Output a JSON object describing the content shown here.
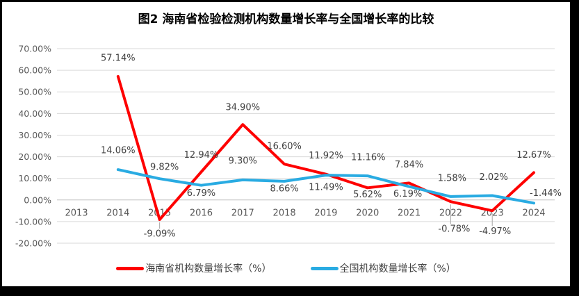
{
  "page": {
    "border_color": "#000000",
    "background": "#ffffff"
  },
  "chart_data": {
    "type": "line",
    "title": "图2 海南省检验检测机构数量增长率与全国增长率的比较",
    "categories": [
      "2013",
      "2014",
      "2015",
      "2016",
      "2017",
      "2018",
      "2019",
      "2020",
      "2021",
      "2022",
      "2023",
      "2024"
    ],
    "ylim": [
      -20,
      70
    ],
    "ytick_step": 10,
    "ytick_labels": [
      "70.00%",
      "60.00%",
      "50.00%",
      "40.00%",
      "30.00%",
      "20.00%",
      "10.00%",
      "0.00%",
      "-10.00%",
      "-20.00%"
    ],
    "grid": true,
    "legend_position": "bottom",
    "series": [
      {
        "name": "海南省机构数量增长率（%）",
        "color": "#fe0000",
        "values": [
          null,
          57.14,
          -9.09,
          12.94,
          34.9,
          16.6,
          11.92,
          5.62,
          7.84,
          -0.78,
          -4.97,
          12.67
        ],
        "data_labels": [
          "",
          "57.14%",
          "-9.09%",
          "12.94%",
          "34.90%",
          "16.60%",
          "11.92%",
          "5.62%",
          "7.84%",
          "-0.78%",
          "-4.97%",
          "12.67%"
        ],
        "label_dx": [
          0,
          0,
          0,
          0,
          0,
          0,
          0,
          0,
          0,
          5,
          4,
          0
        ],
        "label_dy": [
          0,
          -26,
          21,
          -24,
          -24,
          -25,
          -26,
          10,
          -26,
          40,
          30,
          -25
        ],
        "leader_lines": [
          false,
          false,
          true,
          false,
          false,
          false,
          false,
          false,
          false,
          true,
          true,
          false
        ]
      },
      {
        "name": "全国机构数量增长率（%）",
        "color": "#29abe2",
        "values": [
          null,
          14.06,
          9.82,
          6.79,
          9.3,
          8.66,
          11.49,
          11.16,
          6.19,
          1.58,
          2.02,
          -1.44
        ],
        "data_labels": [
          "",
          "14.06%",
          "9.82%",
          "6.79%",
          "9.30%",
          "8.66%",
          "11.49%",
          "11.16%",
          "6.19%",
          "1.58%",
          "2.02%",
          "-1.44%"
        ],
        "label_dx": [
          0,
          0,
          7,
          0,
          0,
          0,
          0,
          1,
          -2,
          2,
          2,
          17
        ],
        "label_dy": [
          0,
          -27,
          -16,
          12,
          -27,
          11,
          18,
          -26,
          11,
          -26,
          -26,
          -14
        ],
        "leader_lines": [
          false,
          false,
          false,
          false,
          false,
          false,
          false,
          false,
          false,
          false,
          false,
          false
        ]
      }
    ],
    "colors": {
      "gridline": "#d9d9d9",
      "axis_line": "#bfbfbf",
      "tick_label": "#595959",
      "data_label": "#404040",
      "leader_line": "#a6a6a6"
    }
  }
}
